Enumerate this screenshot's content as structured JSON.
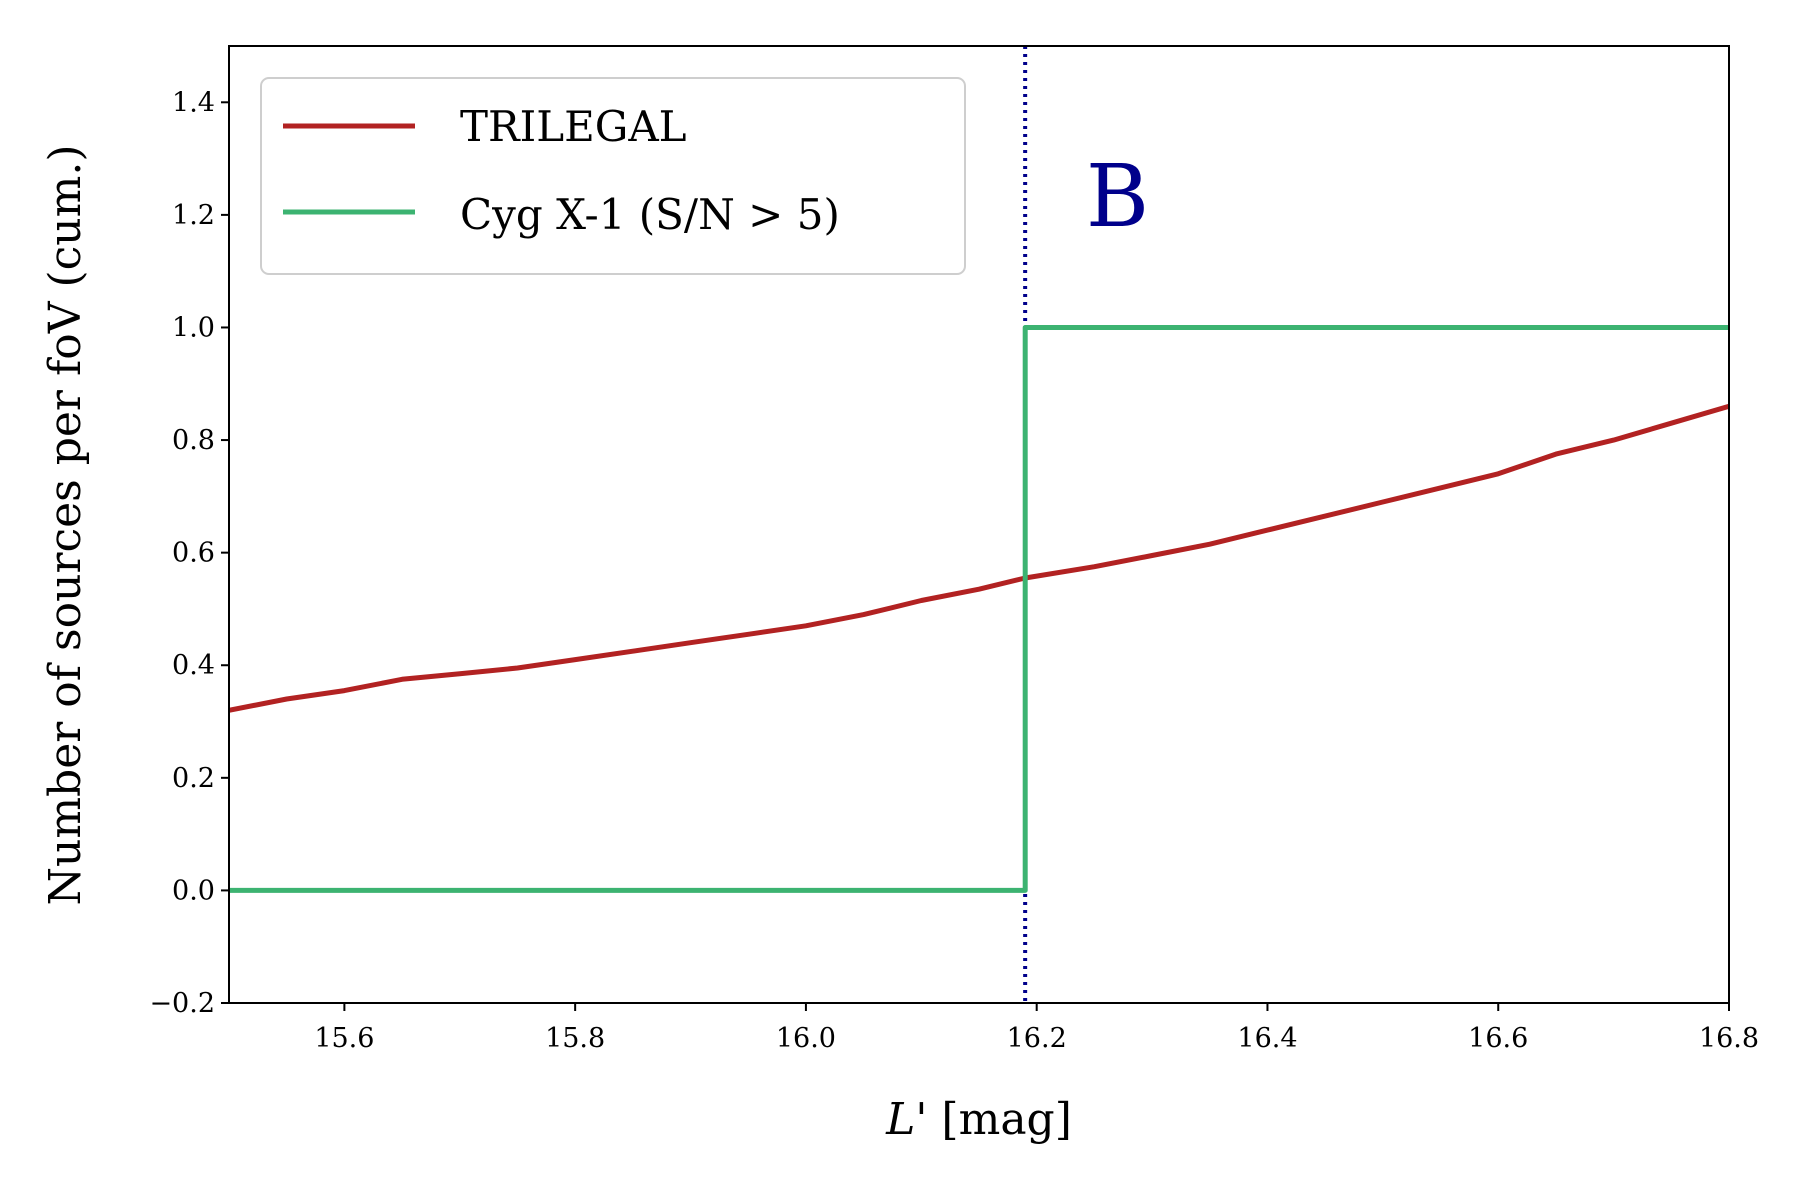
{
  "chart_data": {
    "type": "line",
    "title": "",
    "xlabel": "L' [mag]",
    "xlabel_parts": {
      "var": "L",
      "prime": "'",
      "unit": " [mag]"
    },
    "ylabel": "Number of sources per foV (cum.)",
    "xlim": [
      15.5,
      16.8
    ],
    "ylim": [
      -0.2,
      1.5
    ],
    "xticks": [
      15.6,
      15.8,
      16.0,
      16.2,
      16.4,
      16.6,
      16.8
    ],
    "xtick_labels": [
      "15.6",
      "15.8",
      "16.0",
      "16.2",
      "16.4",
      "16.6",
      "16.8"
    ],
    "yticks": [
      -0.2,
      0.0,
      0.2,
      0.4,
      0.6,
      0.8,
      1.0,
      1.2,
      1.4
    ],
    "ytick_labels": [
      "−0.2",
      "0.0",
      "0.2",
      "0.4",
      "0.6",
      "0.8",
      "1.0",
      "1.2",
      "1.4"
    ],
    "grid": false,
    "legend_position": "top-left",
    "series": [
      {
        "name": "TRILEGAL",
        "color": "#b22222",
        "style": "solid",
        "x": [
          15.5,
          15.55,
          15.6,
          15.65,
          15.7,
          15.75,
          15.8,
          15.85,
          15.9,
          15.95,
          16.0,
          16.05,
          16.1,
          16.15,
          16.19,
          16.25,
          16.3,
          16.35,
          16.4,
          16.45,
          16.5,
          16.55,
          16.6,
          16.65,
          16.7,
          16.75,
          16.8
        ],
        "y": [
          0.32,
          0.34,
          0.355,
          0.375,
          0.385,
          0.395,
          0.41,
          0.425,
          0.44,
          0.455,
          0.47,
          0.49,
          0.515,
          0.535,
          0.555,
          0.575,
          0.595,
          0.615,
          0.64,
          0.665,
          0.69,
          0.715,
          0.74,
          0.775,
          0.8,
          0.83,
          0.86
        ]
      },
      {
        "name": "Cyg X-1 (S/N > 5)",
        "color": "#3cb371",
        "style": "step",
        "x": [
          15.5,
          16.19,
          16.19,
          16.8
        ],
        "y": [
          0.0,
          0.0,
          1.0,
          1.0
        ]
      }
    ],
    "vlines": [
      {
        "x": 16.19,
        "color": "#00008b",
        "style": "dotted"
      }
    ],
    "annotations": [
      {
        "text": "B",
        "x": 16.27,
        "y": 1.23,
        "color": "#00008b"
      }
    ]
  }
}
